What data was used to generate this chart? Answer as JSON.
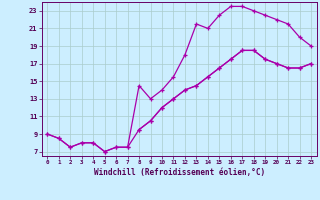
{
  "xlabel": "Windchill (Refroidissement éolien,°C)",
  "bg_color": "#cceeff",
  "grid_color": "#aacccc",
  "line_color": "#aa00aa",
  "xlim": [
    -0.5,
    23.5
  ],
  "ylim": [
    6.5,
    24
  ],
  "xticks": [
    0,
    1,
    2,
    3,
    4,
    5,
    6,
    7,
    8,
    9,
    10,
    11,
    12,
    13,
    14,
    15,
    16,
    17,
    18,
    19,
    20,
    21,
    22,
    23
  ],
  "yticks": [
    7,
    9,
    11,
    13,
    15,
    17,
    19,
    21,
    23
  ],
  "series1_x": [
    0,
    1,
    2,
    3,
    4,
    5,
    6,
    7,
    8,
    9,
    10,
    11,
    12,
    13,
    14,
    15,
    16,
    17,
    18,
    19,
    20,
    21,
    22,
    23
  ],
  "series1_y": [
    9,
    8.5,
    7.5,
    8,
    8,
    7,
    7.5,
    7.5,
    9.5,
    10.5,
    12,
    13,
    14,
    14.5,
    15.5,
    16.5,
    17.5,
    18.5,
    18.5,
    17.5,
    17,
    16.5,
    16.5,
    17
  ],
  "series2_x": [
    0,
    1,
    2,
    3,
    4,
    5,
    6,
    7,
    8,
    9,
    10,
    11,
    12,
    13,
    14,
    15,
    16,
    17,
    18,
    19,
    20,
    21,
    22,
    23
  ],
  "series2_y": [
    9,
    8.5,
    7.5,
    8,
    8,
    7,
    7.5,
    7.5,
    14.5,
    13,
    14,
    15.5,
    18,
    21.5,
    21,
    22.5,
    23.5,
    23.5,
    23,
    22.5,
    22,
    21.5,
    20,
    19
  ],
  "series3_x": [
    8,
    9,
    10,
    11,
    12,
    13,
    14,
    15,
    16,
    17,
    18,
    19,
    20,
    21,
    22,
    23
  ],
  "series3_y": [
    9.5,
    10.5,
    12,
    13,
    14,
    14.5,
    15.5,
    16.5,
    17.5,
    18.5,
    18.5,
    17.5,
    17,
    16.5,
    16.5,
    17
  ]
}
